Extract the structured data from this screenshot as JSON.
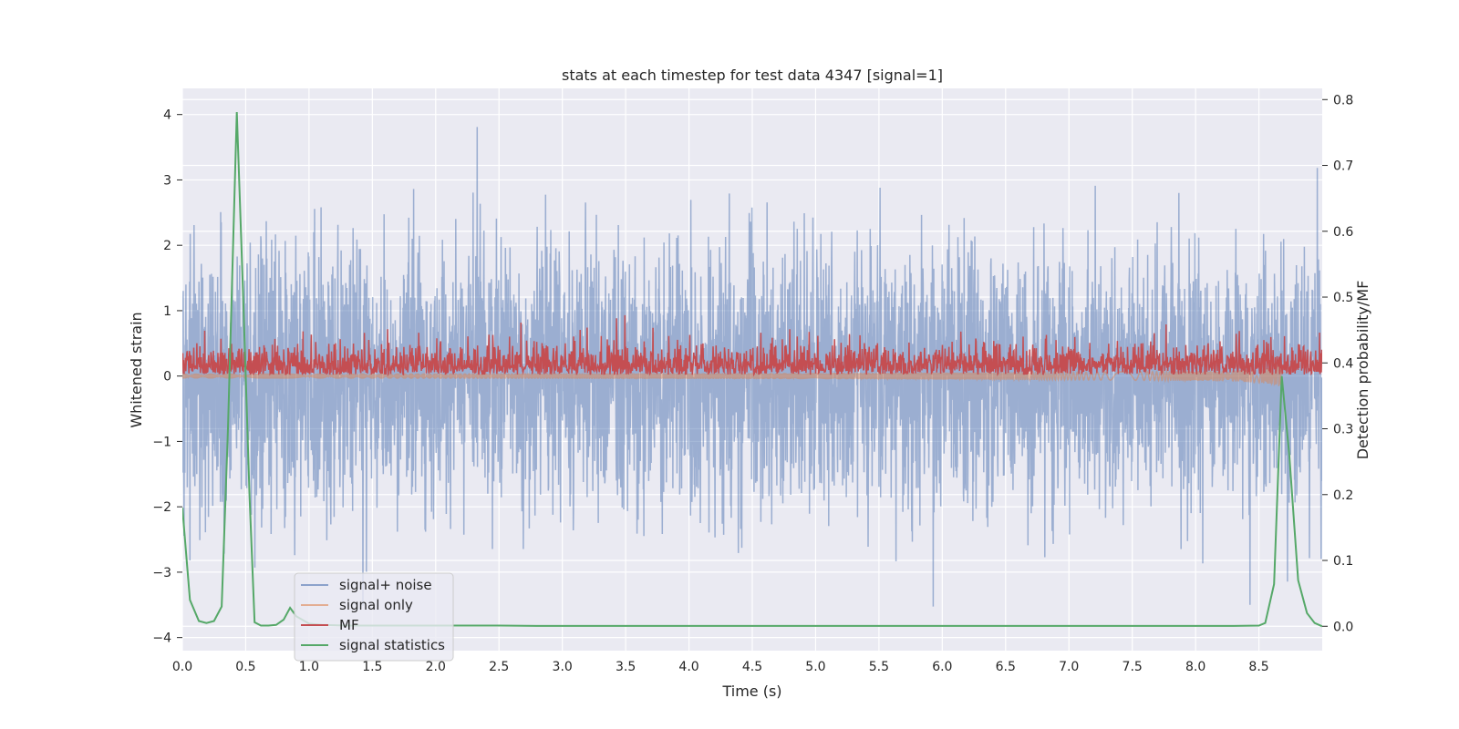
{
  "chart_data": {
    "type": "line",
    "title": "stats at each timestep for test data 4347 [signal=1]",
    "xlabel": "Time (s)",
    "ylabel": "Whitened strain",
    "y2label": "Detection probability/MF",
    "xlim": [
      0.0,
      9.0
    ],
    "ylim": [
      -4.2,
      4.4
    ],
    "y2lim": [
      -0.037,
      0.817
    ],
    "xticks": [
      "0.0",
      "0.5",
      "1.0",
      "1.5",
      "2.0",
      "2.5",
      "3.0",
      "3.5",
      "4.0",
      "4.5",
      "5.0",
      "5.5",
      "6.0",
      "6.5",
      "7.0",
      "7.5",
      "8.0",
      "8.5"
    ],
    "yticks": [
      "4",
      "3",
      "2",
      "1",
      "0",
      "−1",
      "−2",
      "−3",
      "−4"
    ],
    "y2ticks": [
      "0.8",
      "0.7",
      "0.6",
      "0.5",
      "0.4",
      "0.3",
      "0.2",
      "0.1",
      "0.0"
    ],
    "legend_location": "lower-left",
    "grid": true,
    "series": [
      {
        "name": "signal+ noise",
        "axis": "left",
        "color": "#4c72b0",
        "alpha": 0.5,
        "kind": "noise",
        "sample_rate_hz": 2048,
        "std": 1.0,
        "min_peak": -3.9,
        "max_peak": 4.02
      },
      {
        "name": "signal only",
        "axis": "left",
        "color": "#dd8452",
        "alpha": 0.5,
        "kind": "chirp",
        "merger_time_s": 8.68,
        "peak_amplitude": 0.18
      },
      {
        "name": "MF",
        "axis": "left",
        "color": "#c44e52",
        "kind": "noise-positive",
        "typical_range": [
          0.0,
          0.65
        ],
        "max_peak": 1.0
      },
      {
        "name": "signal statistics",
        "axis": "right",
        "color": "#55a868",
        "x": [
          0.0,
          0.06,
          0.13,
          0.19,
          0.25,
          0.31,
          0.36,
          0.43,
          0.48,
          0.53,
          0.57,
          0.62,
          0.68,
          0.74,
          0.8,
          0.85,
          0.9,
          1.0,
          1.1,
          1.3,
          1.5,
          1.8,
          2.0,
          2.2,
          2.5,
          2.8,
          3.0,
          3.5,
          4.0,
          4.5,
          5.0,
          5.5,
          6.0,
          6.5,
          7.0,
          7.5,
          8.0,
          8.3,
          8.5,
          8.55,
          8.62,
          8.68,
          8.74,
          8.81,
          8.88,
          8.94,
          9.0
        ],
        "y": [
          0.18,
          0.04,
          0.008,
          0.005,
          0.008,
          0.03,
          0.3,
          0.781,
          0.5,
          0.2,
          0.006,
          0.001,
          0.001,
          0.002,
          0.01,
          0.028,
          0.015,
          0.004,
          0.002,
          0.001,
          0.001,
          0.001,
          0.001,
          0.001,
          0.001,
          0.0005,
          0.0005,
          0.0005,
          0.0005,
          0.0005,
          0.0005,
          0.0005,
          0.0005,
          0.0005,
          0.0005,
          0.0005,
          0.0005,
          0.0005,
          0.001,
          0.005,
          0.064,
          0.38,
          0.26,
          0.07,
          0.02,
          0.005,
          0.0
        ]
      }
    ]
  },
  "colors": {
    "axes_bg": "#eaeaf2",
    "grid": "#ffffff"
  }
}
